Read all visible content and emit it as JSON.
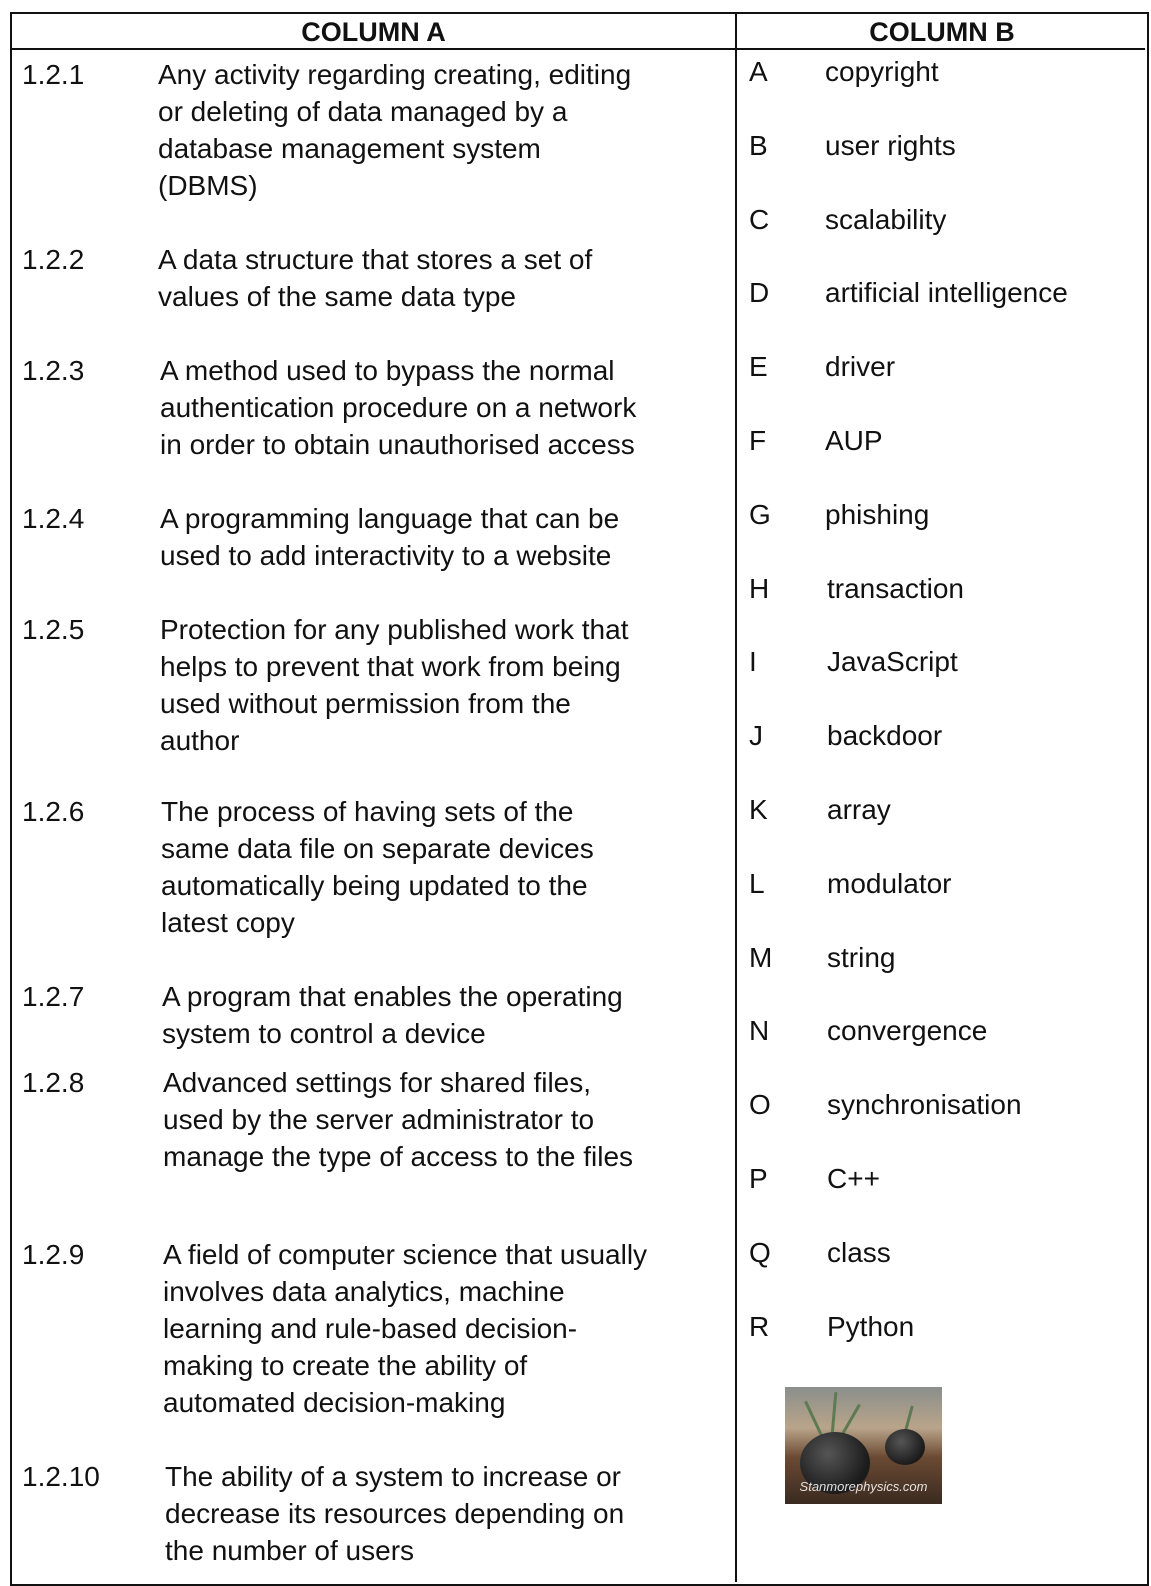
{
  "table": {
    "headers": [
      "COLUMN A",
      "COLUMN B"
    ],
    "column_a": [
      {
        "number": "1.2.1",
        "lines": [
          "Any activity regarding creating, editing",
          "or deleting of data managed by a",
          "database management system",
          "(DBMS)"
        ]
      },
      {
        "number": "1.2.2",
        "lines": [
          "A data structure that stores a set of",
          "values of the same data type"
        ]
      },
      {
        "number": "1.2.3",
        "lines": [
          "A method used to bypass the normal",
          "authentication procedure on a network",
          "in order to obtain unauthorised access"
        ]
      },
      {
        "number": "1.2.4",
        "lines": [
          "A programming language that can be",
          "used to add interactivity to a website"
        ]
      },
      {
        "number": "1.2.5",
        "lines": [
          "Protection for any published work that",
          "helps to prevent that work from being",
          "used without permission from the",
          "author"
        ]
      },
      {
        "number": "1.2.6",
        "lines": [
          "The process of having sets of the",
          "same data file on separate devices",
          "automatically being updated to the",
          "latest copy"
        ]
      },
      {
        "number": "1.2.7",
        "lines": [
          "A program that enables the operating",
          "system to control a device"
        ]
      },
      {
        "number": "1.2.8",
        "lines": [
          "Advanced settings for shared files,",
          "used by the server administrator to",
          "manage the type of access to the files"
        ]
      },
      {
        "number": "1.2.9",
        "lines": [
          "A field of computer science that usually",
          "involves data analytics, machine",
          "learning and rule-based decision-",
          "making to create the ability of",
          "automated decision-making"
        ]
      },
      {
        "number": "1.2.10",
        "lines": [
          "The ability of a system to increase or",
          "decrease its resources depending on",
          "the number of users"
        ]
      }
    ],
    "column_b": [
      {
        "letter": "A",
        "term": "copyright"
      },
      {
        "letter": "B",
        "term": "user rights"
      },
      {
        "letter": "C",
        "term": "scalability"
      },
      {
        "letter": "D",
        "term": "artificial intelligence"
      },
      {
        "letter": "E",
        "term": "driver"
      },
      {
        "letter": "F",
        "term": "AUP"
      },
      {
        "letter": "G",
        "term": "phishing"
      },
      {
        "letter": "H",
        "term": "transaction"
      },
      {
        "letter": "I",
        "term": "JavaScript"
      },
      {
        "letter": "J",
        "term": "backdoor"
      },
      {
        "letter": "K",
        "term": "array"
      },
      {
        "letter": "L",
        "term": "modulator"
      },
      {
        "letter": "M",
        "term": "string"
      },
      {
        "letter": "N",
        "term": "convergence"
      },
      {
        "letter": "O",
        "term": "synchronisation"
      },
      {
        "letter": "P",
        "term": "C++"
      },
      {
        "letter": "Q",
        "term": "class"
      },
      {
        "letter": "R",
        "term": "Python"
      }
    ],
    "watermark": "Stanmorephysics.com"
  }
}
